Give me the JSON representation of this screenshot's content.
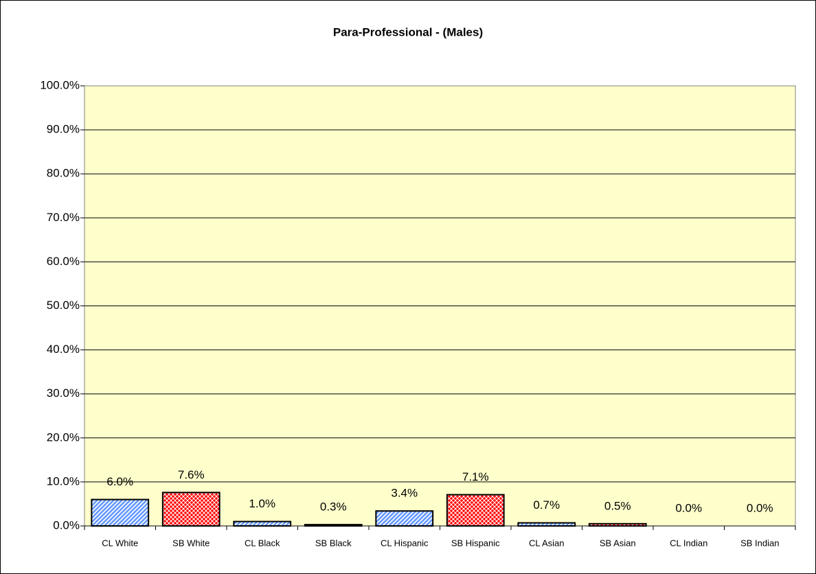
{
  "chart_data": {
    "type": "bar",
    "title": "Para-Professional - (Males)",
    "categories": [
      "CL White",
      "SB White",
      "CL Black",
      "SB Black",
      "CL Hispanic",
      "SB Hispanic",
      "CL Asian",
      "SB Asian",
      "CL Indian",
      "SB Indian"
    ],
    "values": [
      6.0,
      7.6,
      1.0,
      0.3,
      3.4,
      7.1,
      0.7,
      0.5,
      0.0,
      0.0
    ],
    "value_labels": [
      "6.0%",
      "7.6%",
      "1.0%",
      "0.3%",
      "3.4%",
      "7.1%",
      "0.7%",
      "0.5%",
      "0.0%",
      "0.0%"
    ],
    "colors": [
      "#6699ff",
      "#ff0000",
      "#6699ff",
      "#ff0000",
      "#6699ff",
      "#ff0000",
      "#6699ff",
      "#ff0000",
      "#6699ff",
      "#ff0000"
    ],
    "ylim": [
      0,
      100
    ],
    "yticks": [
      {
        "value": 0,
        "label": "0.0%"
      },
      {
        "value": 10,
        "label": "10.0%"
      },
      {
        "value": 20,
        "label": "20.0%"
      },
      {
        "value": 30,
        "label": "30.0%"
      },
      {
        "value": 40,
        "label": "40.0%"
      },
      {
        "value": 50,
        "label": "50.0%"
      },
      {
        "value": 60,
        "label": "60.0%"
      },
      {
        "value": 70,
        "label": "70.0%"
      },
      {
        "value": 80,
        "label": "80.0%"
      },
      {
        "value": 90,
        "label": "90.0%"
      },
      {
        "value": 100,
        "label": "100.0%"
      }
    ],
    "grid": true
  }
}
